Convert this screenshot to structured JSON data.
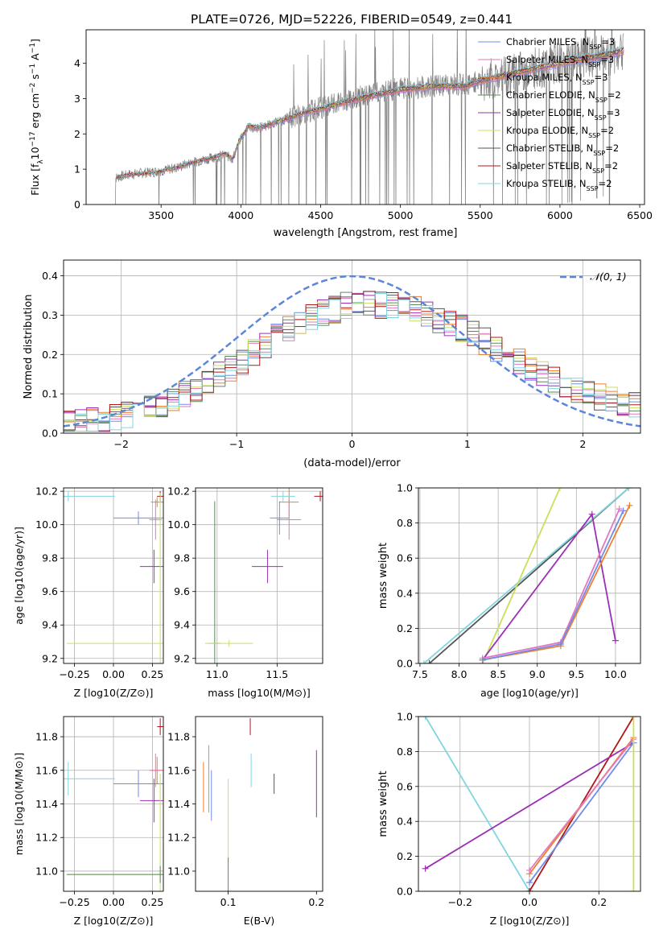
{
  "figure_title": "PLATE=0726, MJD=52226, FIBERID=0549, z=0.441",
  "chart_data": [
    {
      "id": "spectrum",
      "type": "line",
      "title": "PLATE=0726, MJD=52226, FIBERID=0549, z=0.441",
      "xlabel": "wavelength [Angstrom, rest frame]",
      "ylabel": "Flux [f_λ 10^-17 erg cm^-2 s^-1 A^-1]",
      "xlim": [
        3030,
        6530
      ],
      "ylim": [
        0,
        4.95
      ],
      "xticks": [
        3500,
        4000,
        4500,
        5000,
        5500,
        6000,
        6500
      ],
      "yticks": [
        0,
        1,
        2,
        3,
        4
      ],
      "grid": false,
      "legend_position": "top-right",
      "observed_flux": {
        "x": [
          3210,
          3300,
          3400,
          3500,
          3600,
          3700,
          3800,
          3900,
          3950,
          4000,
          4050,
          4100,
          4200,
          4300,
          4400,
          4500,
          4600,
          4700,
          4800,
          4900,
          5000,
          5100,
          5200,
          5300,
          5400,
          5500,
          5600,
          5700,
          5800,
          5900,
          6000,
          6100,
          6200,
          6300,
          6400
        ],
        "y": [
          0.75,
          0.85,
          0.9,
          0.95,
          1.05,
          1.2,
          1.3,
          1.4,
          1.3,
          1.9,
          2.2,
          2.15,
          2.3,
          2.45,
          2.6,
          2.75,
          2.85,
          3.0,
          3.1,
          3.2,
          3.3,
          3.3,
          3.35,
          3.4,
          3.4,
          3.5,
          3.6,
          3.7,
          3.8,
          3.9,
          4.0,
          4.1,
          4.15,
          4.25,
          4.4
        ]
      },
      "series": [
        {
          "name": "Chabrier MILES, N_SSP=3",
          "color": "#6f8de8"
        },
        {
          "name": "Salpeter MILES, N_SSP=3",
          "color": "#e377c2"
        },
        {
          "name": "Kroupa MILES, N_SSP=3",
          "color": "#ee7f2d"
        },
        {
          "name": "Chabrier ELODIE, N_SSP=2",
          "color": "#5a8a5a"
        },
        {
          "name": "Salpeter ELODIE, N_SSP=3",
          "color": "#9b30b5"
        },
        {
          "name": "Kroupa ELODIE, N_SSP=2",
          "color": "#c8e05a"
        },
        {
          "name": "Chabrier STELIB, N_SSP=2",
          "color": "#555555"
        },
        {
          "name": "Salpeter STELIB, N_SSP=2",
          "color": "#b01818"
        },
        {
          "name": "Kroupa STELIB, N_SSP=2",
          "color": "#7fd6e0"
        }
      ],
      "model_continuum": {
        "x": [
          3200,
          3300,
          3400,
          3500,
          3600,
          3700,
          3800,
          3900,
          3950,
          3990,
          4050,
          4100,
          4200,
          4300,
          4400,
          4500,
          4600,
          4700,
          4800,
          4900,
          5000,
          5100,
          5200,
          5300,
          5400,
          5500,
          5600,
          5700,
          5800,
          5900,
          6000,
          6100,
          6200,
          6300,
          6400
        ],
        "y": [
          0.75,
          0.85,
          0.88,
          0.95,
          1.05,
          1.2,
          1.3,
          1.45,
          1.3,
          1.8,
          2.25,
          2.15,
          2.3,
          2.45,
          2.6,
          2.7,
          2.85,
          2.95,
          3.05,
          3.15,
          3.25,
          3.3,
          3.35,
          3.35,
          3.35,
          3.5,
          3.6,
          3.7,
          3.8,
          3.9,
          4.0,
          4.1,
          4.15,
          4.25,
          4.35
        ]
      }
    },
    {
      "id": "residuals",
      "type": "bar",
      "xlabel": "(data-model)/error",
      "ylabel": "Normed distribution",
      "xlim": [
        -2.5,
        2.5
      ],
      "ylim": [
        0,
        0.44
      ],
      "xticks": [
        -2,
        -1,
        0,
        1,
        2
      ],
      "yticks": [
        0.0,
        0.1,
        0.2,
        0.3,
        0.4
      ],
      "grid": true,
      "legend_position": "top-right",
      "reference_curve": {
        "name": "𝒩(0, 1)",
        "color": "#5b86d9"
      },
      "bin_width": 0.1,
      "histogram_shape": {
        "x": [
          -2.5,
          -2.0,
          -1.5,
          -1.0,
          -0.5,
          0.0,
          0.5,
          1.0,
          1.5,
          2.0,
          2.5
        ],
        "y": [
          0.02,
          0.04,
          0.09,
          0.17,
          0.28,
          0.33,
          0.32,
          0.26,
          0.17,
          0.1,
          0.07
        ]
      }
    },
    {
      "id": "Z-age",
      "type": "scatter",
      "xlabel": "Z [log10(Z/Z⊙)]",
      "ylabel": "age [log10(age/yr)]",
      "xlim": [
        -0.32,
        0.32
      ],
      "ylim": [
        9.17,
        10.22
      ],
      "xticks": [
        -0.25,
        0.0,
        0.25
      ],
      "xticklabels": [
        "−0.25",
        "0.00",
        "0.25"
      ],
      "yticks": [
        9.2,
        9.4,
        9.6,
        9.8,
        10.0,
        10.2
      ],
      "grid": true,
      "points": [
        {
          "x": 0.3,
          "y": 10.17,
          "xerr": 0.02,
          "yerr": 0.03,
          "color": "#b01818"
        },
        {
          "x": 0.28,
          "y": 10.135,
          "xerr": 0.04,
          "yerr": 0.03,
          "color": "#ee7f2d"
        },
        {
          "x": 0.16,
          "y": 10.04,
          "xerr": 0.16,
          "yerr": 0.04,
          "color": "#6f8de8"
        },
        {
          "x": 0.27,
          "y": 10.03,
          "xerr": 0.04,
          "yerr": 0.12,
          "color": "#e377c2"
        },
        {
          "x": 0.26,
          "y": 9.75,
          "xerr": 0.09,
          "yerr": 0.1,
          "color": "#9b30b5"
        },
        {
          "x": 0.3,
          "y": 9.29,
          "xerr": 0.6,
          "yerr": 0.9,
          "color": "#c8e05a"
        },
        {
          "x": -0.29,
          "y": 10.17,
          "xerr": 0.3,
          "yerr": 0.03,
          "color": "#7fd6e0"
        }
      ]
    },
    {
      "id": "mass-age",
      "type": "scatter",
      "xlabel": "mass [log10(M/M⊙)]",
      "xlim": [
        10.82,
        11.88
      ],
      "ylim": [
        9.17,
        10.22
      ],
      "xticks": [
        11.0,
        11.5
      ],
      "xticklabels": [
        "11.0",
        "11.5"
      ],
      "yticks": [
        9.2,
        9.4,
        9.6,
        9.8,
        10.0,
        10.2
      ],
      "grid": true,
      "points": [
        {
          "x": 11.86,
          "y": 10.17,
          "xerr": 0.05,
          "yerr": 0.03,
          "color": "#b01818"
        },
        {
          "x": 11.6,
          "y": 10.135,
          "xerr": 0.08,
          "yerr": 0.1,
          "color": "#ee7f2d"
        },
        {
          "x": 11.52,
          "y": 10.04,
          "xerr": 0.08,
          "yerr": 0.1,
          "color": "#6f8de8"
        },
        {
          "x": 11.6,
          "y": 10.03,
          "xerr": 0.1,
          "yerr": 0.12,
          "color": "#e377c2"
        },
        {
          "x": 11.42,
          "y": 9.75,
          "xerr": 0.13,
          "yerr": 0.1,
          "color": "#9b30b5"
        },
        {
          "x": 10.98,
          "y": 9.29,
          "xerr": 0.05,
          "yerr": 0.85,
          "color": "#5a8a5a"
        },
        {
          "x": 11.1,
          "y": 9.29,
          "xerr": 0.2,
          "yerr": 0.02,
          "color": "#c8e05a"
        },
        {
          "x": 11.55,
          "y": 10.17,
          "xerr": 0.1,
          "yerr": 0.03,
          "color": "#7fd6e0"
        }
      ]
    },
    {
      "id": "age-weight",
      "type": "line",
      "xlabel": "age [log10(age/yr)]",
      "ylabel": "mass weight",
      "xlim": [
        7.48,
        10.32
      ],
      "ylim": [
        0,
        1
      ],
      "xticks": [
        7.5,
        8.0,
        8.5,
        9.0,
        9.5,
        10.0
      ],
      "yticks": [
        0.0,
        0.2,
        0.4,
        0.6,
        0.8,
        1.0
      ],
      "grid": true,
      "series": [
        {
          "color": "#555555",
          "x": [
            7.62,
            10.17
          ],
          "y": [
            0.0,
            1.0
          ]
        },
        {
          "color": "#7fd6e0",
          "x": [
            7.55,
            10.17
          ],
          "y": [
            0.0,
            1.0
          ]
        },
        {
          "color": "#c8e05a",
          "x": [
            8.3,
            9.29
          ],
          "y": [
            0.0,
            1.0
          ]
        },
        {
          "color": "#9b30b5",
          "x": [
            8.3,
            9.7,
            10.0
          ],
          "y": [
            0.02,
            0.85,
            0.13
          ]
        },
        {
          "color": "#ee7f2d",
          "x": [
            8.3,
            9.3,
            10.18
          ],
          "y": [
            0.02,
            0.1,
            0.9
          ]
        },
        {
          "color": "#e377c2",
          "x": [
            8.3,
            9.3,
            10.05
          ],
          "y": [
            0.03,
            0.12,
            0.88
          ]
        },
        {
          "color": "#6f8de8",
          "x": [
            8.3,
            9.3,
            10.1
          ],
          "y": [
            0.02,
            0.11,
            0.87
          ]
        }
      ]
    },
    {
      "id": "Z-mass",
      "type": "scatter",
      "xlabel": "Z [log10(Z/Z⊙)]",
      "ylabel": "mass [log10(M/M⊙)]",
      "xlim": [
        -0.32,
        0.32
      ],
      "ylim": [
        10.88,
        11.92
      ],
      "xticks": [
        -0.25,
        0.0,
        0.25
      ],
      "xticklabels": [
        "−0.25",
        "0.00",
        "0.25"
      ],
      "yticks": [
        11.0,
        11.2,
        11.4,
        11.6,
        11.8
      ],
      "grid": true,
      "points": [
        {
          "x": 0.3,
          "y": 11.86,
          "xerr": 0.02,
          "yerr": 0.05,
          "color": "#b01818"
        },
        {
          "x": 0.28,
          "y": 11.6,
          "xerr": 0.04,
          "yerr": 0.08,
          "color": "#ee7f2d"
        },
        {
          "x": 0.16,
          "y": 11.52,
          "xerr": 0.16,
          "yerr": 0.08,
          "color": "#6f8de8"
        },
        {
          "x": 0.27,
          "y": 11.6,
          "xerr": 0.04,
          "yerr": 0.1,
          "color": "#e377c2"
        },
        {
          "x": 0.26,
          "y": 11.42,
          "xerr": 0.09,
          "yerr": 0.13,
          "color": "#9b30b5"
        },
        {
          "x": 0.3,
          "y": 10.98,
          "xerr": 0.6,
          "yerr": 0.6,
          "color": "#c8e05a"
        },
        {
          "x": 0.3,
          "y": 10.98,
          "xerr": 0.6,
          "yerr": 0.05,
          "color": "#5a8a5a"
        },
        {
          "x": -0.29,
          "y": 11.55,
          "xerr": 0.3,
          "yerr": 0.1,
          "color": "#7fd6e0"
        }
      ]
    },
    {
      "id": "ebv-mass",
      "type": "scatter",
      "xlabel": "E(B-V)",
      "xlim": [
        0.063,
        0.207
      ],
      "ylim": [
        10.88,
        11.92
      ],
      "xticks": [
        0.1,
        0.2
      ],
      "xticklabels": [
        "0.1",
        "0.2"
      ],
      "yticks": [
        11.0,
        11.2,
        11.4,
        11.6,
        11.8
      ],
      "grid": false,
      "points": [
        {
          "x": 0.125,
          "y": 11.86,
          "yerr": 0.05,
          "color": "#b01818"
        },
        {
          "x": 0.072,
          "y": 11.5,
          "yerr": 0.15,
          "color": "#ee7f2d"
        },
        {
          "x": 0.078,
          "y": 11.55,
          "yerr": 0.2,
          "color": "#e377c2"
        },
        {
          "x": 0.081,
          "y": 11.45,
          "yerr": 0.15,
          "color": "#6f8de8"
        },
        {
          "x": 0.2,
          "y": 11.52,
          "yerr": 0.2,
          "color": "#9b30b5"
        },
        {
          "x": 0.1,
          "y": 11.3,
          "yerr": 0.25,
          "color": "#c8e05a"
        },
        {
          "x": 0.1,
          "y": 10.98,
          "yerr": 0.1,
          "color": "#5a8a5a"
        },
        {
          "x": 0.126,
          "y": 11.6,
          "yerr": 0.1,
          "color": "#7fd6e0"
        },
        {
          "x": 0.152,
          "y": 11.52,
          "yerr": 0.06,
          "color": "#555555"
        }
      ]
    },
    {
      "id": "Z-weight",
      "type": "line",
      "xlabel": "Z [log10(Z/Z⊙)]",
      "ylabel": "mass weight",
      "xlim": [
        -0.32,
        0.32
      ],
      "ylim": [
        0,
        1
      ],
      "xticks": [
        -0.2,
        0.0,
        0.2
      ],
      "xticklabels": [
        "−0.2",
        "0.0",
        "0.2"
      ],
      "yticks": [
        0.0,
        0.2,
        0.4,
        0.6,
        0.8,
        1.0
      ],
      "grid": true,
      "series": [
        {
          "color": "#7fd6e0",
          "x": [
            -0.3,
            0.0
          ],
          "y": [
            1.0,
            0.0
          ]
        },
        {
          "color": "#b01818",
          "x": [
            0.0,
            0.3
          ],
          "y": [
            0.0,
            1.0
          ]
        },
        {
          "color": "#9b30b5",
          "x": [
            -0.3,
            0.3
          ],
          "y": [
            0.13,
            0.85
          ]
        },
        {
          "color": "#ee7f2d",
          "x": [
            0.0,
            0.3
          ],
          "y": [
            0.1,
            0.88
          ]
        },
        {
          "color": "#e377c2",
          "x": [
            0.0,
            0.3
          ],
          "y": [
            0.12,
            0.87
          ]
        },
        {
          "color": "#6f8de8",
          "x": [
            0.0,
            0.3
          ],
          "y": [
            0.05,
            0.85
          ]
        },
        {
          "color": "#c8e05a",
          "x": [
            0.3,
            0.3
          ],
          "y": [
            0.0,
            1.0
          ]
        }
      ]
    }
  ]
}
